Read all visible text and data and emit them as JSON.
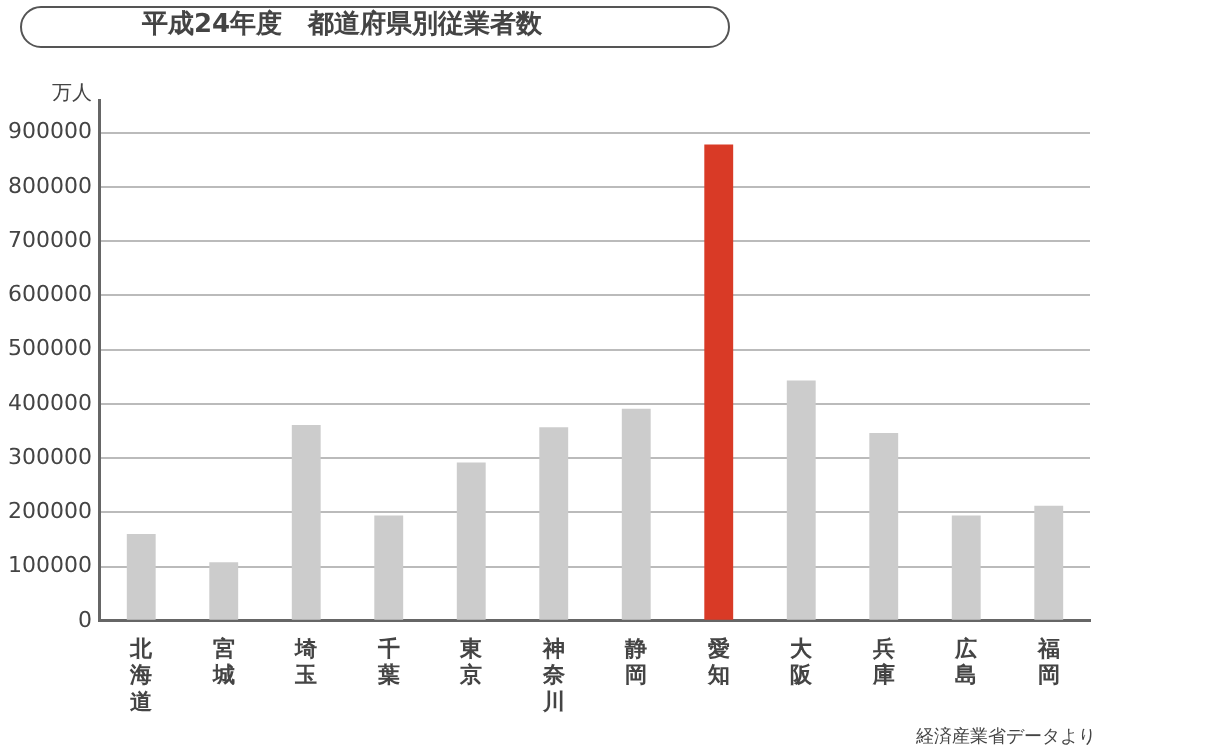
{
  "chart_data": {
    "type": "bar",
    "title": "平成24年度　都道府県別従業者数",
    "ylabel": "万人",
    "categories": [
      "北海道",
      "宮城",
      "埼玉",
      "千葉",
      "東京",
      "神奈川",
      "静岡",
      "愛知",
      "大阪",
      "兵庫",
      "広島",
      "福岡"
    ],
    "values": [
      160000,
      108000,
      361000,
      194000,
      292000,
      357000,
      391000,
      878000,
      443000,
      346000,
      194000,
      212000
    ],
    "colors": [
      "#cccccc",
      "#cccccc",
      "#cccccc",
      "#cccccc",
      "#cccccc",
      "#cccccc",
      "#cccccc",
      "#d93a26",
      "#cccccc",
      "#cccccc",
      "#cccccc",
      "#cccccc"
    ],
    "ylim": [
      0,
      960000
    ],
    "yticks": [
      0,
      100000,
      200000,
      300000,
      400000,
      500000,
      600000,
      700000,
      800000,
      900000
    ],
    "grid": "y",
    "legend": false,
    "annotations": [
      "経済産業省データより"
    ]
  }
}
